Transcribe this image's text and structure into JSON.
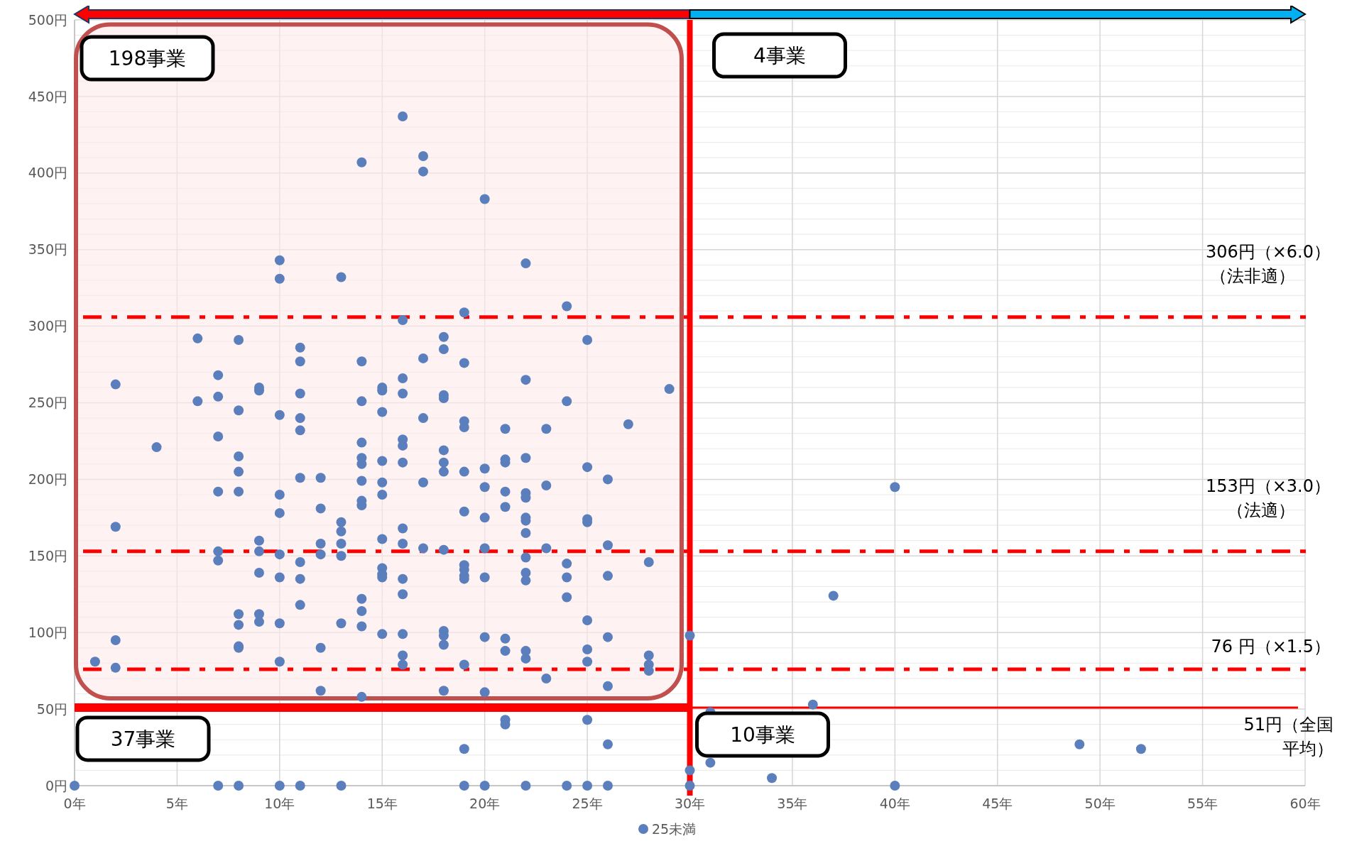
{
  "chart_data": {
    "type": "scatter",
    "xlim": [
      0,
      60
    ],
    "ylim": [
      0,
      500
    ],
    "xticks": [
      {
        "value": 0,
        "label": "0年"
      },
      {
        "value": 5,
        "label": "5年"
      },
      {
        "value": 10,
        "label": "10年"
      },
      {
        "value": 15,
        "label": "15年"
      },
      {
        "value": 20,
        "label": "20年"
      },
      {
        "value": 25,
        "label": "25年"
      },
      {
        "value": 30,
        "label": "30年"
      },
      {
        "value": 35,
        "label": "35年"
      },
      {
        "value": 40,
        "label": "40年"
      },
      {
        "value": 45,
        "label": "45年"
      },
      {
        "value": 50,
        "label": "50年"
      },
      {
        "value": 55,
        "label": "55年"
      },
      {
        "value": 60,
        "label": "60年"
      }
    ],
    "yticks": [
      {
        "value": 0,
        "label": "0円"
      },
      {
        "value": 10,
        "label": null
      },
      {
        "value": 20,
        "label": null
      },
      {
        "value": 30,
        "label": null
      },
      {
        "value": 40,
        "label": null
      },
      {
        "value": 50,
        "label": "50円"
      },
      {
        "value": 60,
        "label": null
      },
      {
        "value": 70,
        "label": null
      },
      {
        "value": 80,
        "label": null
      },
      {
        "value": 90,
        "label": null
      },
      {
        "value": 100,
        "label": "100円"
      },
      {
        "value": 110,
        "label": null
      },
      {
        "value": 120,
        "label": null
      },
      {
        "value": 130,
        "label": null
      },
      {
        "value": 140,
        "label": null
      },
      {
        "value": 150,
        "label": "150円"
      },
      {
        "value": 160,
        "label": null
      },
      {
        "value": 170,
        "label": null
      },
      {
        "value": 180,
        "label": null
      },
      {
        "value": 190,
        "label": null
      },
      {
        "value": 200,
        "label": "200円"
      },
      {
        "value": 210,
        "label": null
      },
      {
        "value": 220,
        "label": null
      },
      {
        "value": 230,
        "label": null
      },
      {
        "value": 240,
        "label": null
      },
      {
        "value": 250,
        "label": "250円"
      },
      {
        "value": 260,
        "label": null
      },
      {
        "value": 270,
        "label": null
      },
      {
        "value": 280,
        "label": null
      },
      {
        "value": 290,
        "label": null
      },
      {
        "value": 300,
        "label": "300円"
      },
      {
        "value": 310,
        "label": null
      },
      {
        "value": 320,
        "label": null
      },
      {
        "value": 330,
        "label": null
      },
      {
        "value": 340,
        "label": null
      },
      {
        "value": 350,
        "label": "350円"
      },
      {
        "value": 360,
        "label": null
      },
      {
        "value": 370,
        "label": null
      },
      {
        "value": 380,
        "label": null
      },
      {
        "value": 390,
        "label": null
      },
      {
        "value": 400,
        "label": "400円"
      },
      {
        "value": 410,
        "label": null
      },
      {
        "value": 420,
        "label": null
      },
      {
        "value": 430,
        "label": null
      },
      {
        "value": 440,
        "label": null
      },
      {
        "value": 450,
        "label": "450円"
      },
      {
        "value": 460,
        "label": null
      },
      {
        "value": 470,
        "label": null
      },
      {
        "value": 480,
        "label": null
      },
      {
        "value": 490,
        "label": null
      },
      {
        "value": 500,
        "label": "500円"
      }
    ],
    "grid": true,
    "legend": "bottom",
    "marker": "circle",
    "series": [
      {
        "name": "25未満",
        "color": "#5b7fbd",
        "x": [
          0,
          1,
          2,
          2,
          2,
          2,
          4,
          6,
          6,
          7,
          7,
          7,
          7,
          7,
          7,
          7,
          8,
          8,
          8,
          8,
          8,
          8,
          8,
          8,
          8,
          8,
          9,
          9,
          9,
          9,
          9,
          9,
          9,
          10,
          10,
          10,
          10,
          10,
          10,
          10,
          10,
          10,
          10,
          11,
          11,
          11,
          11,
          11,
          11,
          11,
          11,
          11,
          11,
          12,
          12,
          12,
          12,
          12,
          12,
          13,
          13,
          13,
          13,
          13,
          13,
          13,
          14,
          14,
          14,
          14,
          14,
          14,
          14,
          14,
          14,
          14,
          14,
          14,
          14,
          15,
          15,
          15,
          15,
          15,
          15,
          15,
          15,
          15,
          15,
          15,
          16,
          16,
          16,
          16,
          16,
          16,
          16,
          16,
          16,
          16,
          16,
          16,
          16,
          16,
          17,
          17,
          17,
          17,
          17,
          17,
          18,
          18,
          18,
          18,
          18,
          18,
          18,
          18,
          18,
          18,
          18,
          18,
          19,
          19,
          19,
          19,
          19,
          19,
          19,
          19,
          19,
          19,
          19,
          19,
          19,
          20,
          20,
          20,
          20,
          20,
          20,
          20,
          20,
          20,
          21,
          21,
          21,
          21,
          21,
          21,
          21,
          21,
          21,
          22,
          22,
          22,
          22,
          22,
          22,
          22,
          22,
          22,
          22,
          22,
          22,
          22,
          22,
          23,
          23,
          23,
          23,
          24,
          24,
          24,
          24,
          24,
          24,
          25,
          25,
          25,
          25,
          25,
          25,
          25,
          25,
          25,
          26,
          26,
          26,
          26,
          26,
          26,
          26,
          27,
          28,
          28,
          28,
          28,
          29,
          30,
          30,
          30,
          31,
          31,
          34,
          36,
          37,
          40,
          40,
          49,
          52
        ],
        "values": [
          0,
          81,
          262,
          169,
          95,
          77,
          221,
          292,
          251,
          268,
          254,
          228,
          192,
          153,
          147,
          0,
          291,
          245,
          215,
          205,
          192,
          112,
          105,
          91,
          90,
          0,
          260,
          258,
          160,
          153,
          139,
          112,
          107,
          343,
          331,
          242,
          190,
          178,
          151,
          136,
          106,
          81,
          0,
          286,
          277,
          256,
          240,
          232,
          201,
          146,
          135,
          118,
          0,
          201,
          181,
          158,
          151,
          90,
          62,
          332,
          172,
          166,
          158,
          150,
          106,
          0,
          407,
          277,
          251,
          224,
          214,
          210,
          199,
          186,
          183,
          122,
          114,
          104,
          58,
          260,
          258,
          244,
          212,
          198,
          190,
          161,
          142,
          138,
          136,
          99,
          437,
          304,
          266,
          256,
          226,
          222,
          211,
          168,
          158,
          135,
          125,
          99,
          85,
          79,
          411,
          401,
          279,
          240,
          198,
          155,
          293,
          285,
          255,
          253,
          219,
          211,
          205,
          154,
          101,
          98,
          92,
          62,
          309,
          276,
          238,
          234,
          205,
          179,
          144,
          141,
          137,
          135,
          79,
          24,
          0,
          383,
          207,
          195,
          175,
          155,
          136,
          97,
          61,
          0,
          233,
          213,
          211,
          192,
          182,
          96,
          88,
          43,
          40,
          341,
          265,
          214,
          191,
          188,
          175,
          173,
          165,
          149,
          139,
          134,
          88,
          83,
          0,
          233,
          196,
          155,
          70,
          313,
          251,
          145,
          136,
          123,
          0,
          291,
          208,
          174,
          172,
          108,
          89,
          81,
          43,
          0,
          200,
          157,
          137,
          97,
          65,
          27,
          0,
          236,
          146,
          85,
          79,
          75,
          259,
          98,
          10,
          0,
          48,
          15,
          5,
          53,
          124,
          195,
          0,
          27,
          24
        ]
      }
    ],
    "ref_lines": [
      {
        "axis": "y",
        "value": 306,
        "label": "306円（×6.0）（法非適）",
        "color": "#ff0000",
        "line_style": "dashed"
      },
      {
        "axis": "y",
        "value": 153,
        "label": "153円（×3.0）（法適）",
        "color": "#ff0000",
        "line_style": "dashed"
      },
      {
        "axis": "y",
        "value": 76,
        "label": "76 円（×1.5）",
        "color": "#ff0000",
        "line_style": "dashed"
      },
      {
        "axis": "y",
        "value": 51,
        "label": "51円（全国平均）",
        "color": "#ff0000",
        "line_style": "solid"
      },
      {
        "axis": "x",
        "value": 30,
        "label": null,
        "color": "#ff0000",
        "line_style": "solid"
      }
    ],
    "annotations": [
      "198事業",
      "4事業",
      "37事業",
      "10事業"
    ]
  }
}
